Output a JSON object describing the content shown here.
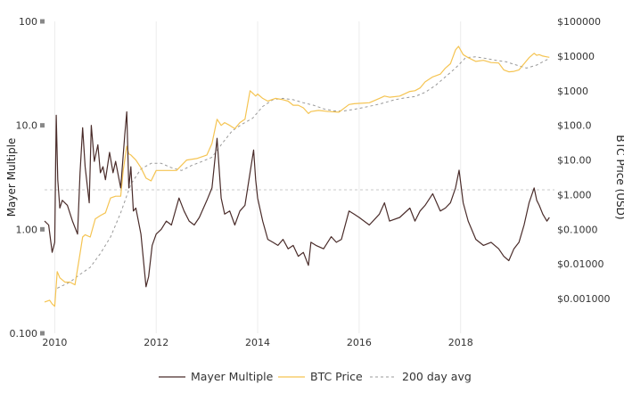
{
  "chart_data": {
    "type": "line",
    "title": "",
    "xlabel": "",
    "ylabel_left": "Mayer Multiple",
    "ylabel_right": "BTC Price (USD)",
    "x_range": [
      2009.8,
      2019.85
    ],
    "x_ticks": [
      2010,
      2012,
      2014,
      2016,
      2018
    ],
    "x_tick_labels": [
      "2010",
      "2012",
      "2014",
      "2016",
      "2018"
    ],
    "left_axis": {
      "scale": "log",
      "range": [
        0.1,
        100
      ],
      "ticks": [
        0.1,
        1,
        10,
        100
      ],
      "tick_labels": [
        "0.100",
        "1.00",
        "10.0",
        "100"
      ]
    },
    "right_axis": {
      "scale": "log",
      "range": [
        0.0001,
        100000
      ],
      "ticks": [
        0.001,
        0.01,
        0.1,
        1,
        10,
        100,
        1000,
        10000,
        100000
      ],
      "tick_labels": [
        "$0.001000",
        "$0.01000",
        "$0.1000",
        "$1.000",
        "$10.00",
        "$100.0",
        "$1000",
        "$10000",
        "$100000"
      ]
    },
    "reference_line": {
      "axis": "left",
      "value": 2.4
    },
    "grid": {
      "x": true,
      "y": false
    },
    "legend": {
      "position": "bottom-center"
    },
    "colors": {
      "mayer_multiple": "#4a2c2a",
      "btc_price": "#f5c452",
      "ma200": "#999999",
      "reference": "#c8c8c8"
    },
    "series": [
      {
        "name": "Mayer Multiple",
        "axis": "left",
        "x": [
          2009.8,
          2009.88,
          2009.95,
          2010.0,
          2010.03,
          2010.06,
          2010.1,
          2010.15,
          2010.25,
          2010.35,
          2010.45,
          2010.5,
          2010.55,
          2010.6,
          2010.68,
          2010.72,
          2010.78,
          2010.85,
          2010.9,
          2010.95,
          2011.0,
          2011.08,
          2011.15,
          2011.2,
          2011.3,
          2011.38,
          2011.42,
          2011.46,
          2011.5,
          2011.55,
          2011.6,
          2011.7,
          2011.8,
          2011.85,
          2011.92,
          2012.0,
          2012.1,
          2012.2,
          2012.3,
          2012.45,
          2012.55,
          2012.65,
          2012.75,
          2012.85,
          2013.0,
          2013.1,
          2013.2,
          2013.28,
          2013.35,
          2013.45,
          2013.55,
          2013.65,
          2013.75,
          2013.85,
          2013.92,
          2013.96,
          2014.0,
          2014.1,
          2014.2,
          2014.3,
          2014.4,
          2014.5,
          2014.6,
          2014.7,
          2014.8,
          2014.9,
          2015.0,
          2015.05,
          2015.15,
          2015.3,
          2015.45,
          2015.55,
          2015.65,
          2015.8,
          2015.9,
          2016.0,
          2016.2,
          2016.4,
          2016.5,
          2016.6,
          2016.8,
          2017.0,
          2017.1,
          2017.2,
          2017.3,
          2017.45,
          2017.6,
          2017.7,
          2017.8,
          2017.9,
          2017.97,
          2018.05,
          2018.15,
          2018.3,
          2018.45,
          2018.6,
          2018.75,
          2018.85,
          2018.95,
          2019.05,
          2019.15,
          2019.25,
          2019.35,
          2019.45,
          2019.5,
          2019.55,
          2019.62,
          2019.7,
          2019.75
        ],
        "values": [
          1.2,
          1.1,
          0.6,
          0.75,
          12.5,
          3.0,
          1.6,
          1.9,
          1.7,
          1.2,
          0.9,
          3.5,
          9.5,
          4.0,
          1.8,
          10.0,
          4.5,
          6.5,
          3.5,
          4.0,
          3.0,
          5.5,
          3.5,
          4.5,
          2.5,
          8.0,
          13.5,
          2.5,
          4.0,
          1.5,
          1.6,
          0.9,
          0.28,
          0.35,
          0.7,
          0.9,
          1.0,
          1.2,
          1.1,
          2.0,
          1.5,
          1.2,
          1.1,
          1.3,
          1.9,
          2.5,
          7.5,
          2.0,
          1.4,
          1.5,
          1.1,
          1.5,
          1.7,
          3.5,
          5.8,
          3.0,
          2.0,
          1.2,
          0.8,
          0.75,
          0.7,
          0.8,
          0.65,
          0.7,
          0.55,
          0.6,
          0.45,
          0.75,
          0.7,
          0.65,
          0.85,
          0.75,
          0.8,
          1.5,
          1.4,
          1.3,
          1.1,
          1.4,
          1.8,
          1.2,
          1.3,
          1.6,
          1.2,
          1.5,
          1.7,
          2.2,
          1.5,
          1.6,
          1.8,
          2.5,
          3.7,
          1.8,
          1.2,
          0.8,
          0.7,
          0.75,
          0.65,
          0.55,
          0.5,
          0.65,
          0.75,
          1.1,
          1.8,
          2.5,
          1.9,
          1.7,
          1.4,
          1.2,
          1.3
        ]
      },
      {
        "name": "BTC Price",
        "axis": "right",
        "x": [
          2009.8,
          2009.9,
          2009.95,
          2010.0,
          2010.05,
          2010.1,
          2010.2,
          2010.3,
          2010.4,
          2010.5,
          2010.55,
          2010.6,
          2010.7,
          2010.8,
          2010.9,
          2011.0,
          2011.1,
          2011.2,
          2011.3,
          2011.35,
          2011.42,
          2011.46,
          2011.5,
          2011.6,
          2011.7,
          2011.8,
          2011.9,
          2012.0,
          2012.2,
          2012.4,
          2012.6,
          2012.8,
          2013.0,
          2013.1,
          2013.2,
          2013.28,
          2013.35,
          2013.45,
          2013.55,
          2013.65,
          2013.75,
          2013.85,
          2013.92,
          2013.96,
          2014.0,
          2014.1,
          2014.2,
          2014.35,
          2014.5,
          2014.6,
          2014.7,
          2014.8,
          2014.9,
          2015.0,
          2015.05,
          2015.2,
          2015.4,
          2015.6,
          2015.8,
          2015.9,
          2016.0,
          2016.2,
          2016.4,
          2016.5,
          2016.6,
          2016.8,
          2017.0,
          2017.1,
          2017.2,
          2017.3,
          2017.45,
          2017.6,
          2017.7,
          2017.8,
          2017.9,
          2017.96,
          2018.05,
          2018.15,
          2018.3,
          2018.45,
          2018.6,
          2018.75,
          2018.85,
          2018.95,
          2019.05,
          2019.15,
          2019.25,
          2019.35,
          2019.45,
          2019.5,
          2019.55,
          2019.62,
          2019.7,
          2019.75
        ],
        "values": [
          0.0008,
          0.0009,
          0.0007,
          0.0006,
          0.006,
          0.004,
          0.003,
          0.003,
          0.0025,
          0.02,
          0.06,
          0.07,
          0.06,
          0.2,
          0.25,
          0.3,
          0.8,
          0.9,
          0.9,
          5,
          25,
          15,
          14,
          10,
          6,
          3,
          2.5,
          5,
          5,
          5,
          10,
          11,
          14,
          30,
          150,
          100,
          120,
          100,
          80,
          120,
          150,
          1000,
          800,
          700,
          800,
          600,
          500,
          600,
          550,
          500,
          380,
          380,
          320,
          220,
          250,
          270,
          250,
          240,
          400,
          420,
          430,
          450,
          600,
          700,
          650,
          700,
          950,
          1000,
          1200,
          1800,
          2500,
          3000,
          4500,
          6000,
          15000,
          19000,
          11000,
          9000,
          7000,
          7500,
          6500,
          6300,
          4000,
          3500,
          3600,
          4000,
          6000,
          9000,
          12000,
          10500,
          11000,
          10000,
          9500,
          9200
        ]
      },
      {
        "name": "200 day avg",
        "axis": "right",
        "x": [
          2010.05,
          2010.3,
          2010.5,
          2010.7,
          2010.9,
          2011.1,
          2011.3,
          2011.5,
          2011.7,
          2011.9,
          2012.1,
          2012.3,
          2012.5,
          2012.7,
          2012.9,
          2013.1,
          2013.3,
          2013.5,
          2013.7,
          2013.9,
          2014.1,
          2014.3,
          2014.5,
          2014.7,
          2014.9,
          2015.1,
          2015.3,
          2015.5,
          2015.7,
          2015.9,
          2016.1,
          2016.3,
          2016.5,
          2016.7,
          2016.9,
          2017.1,
          2017.3,
          2017.5,
          2017.7,
          2017.9,
          2018.1,
          2018.3,
          2018.5,
          2018.7,
          2018.9,
          2019.1,
          2019.3,
          2019.5,
          2019.75
        ],
        "values": [
          0.002,
          0.003,
          0.005,
          0.008,
          0.02,
          0.06,
          0.3,
          2.0,
          5.5,
          8,
          8,
          6,
          5,
          7,
          9,
          12,
          30,
          70,
          110,
          160,
          350,
          550,
          600,
          550,
          450,
          380,
          300,
          260,
          260,
          290,
          330,
          380,
          450,
          550,
          620,
          680,
          900,
          1400,
          2500,
          4500,
          9000,
          9500,
          8500,
          7500,
          6800,
          5500,
          4500,
          5500,
          8500
        ]
      }
    ]
  }
}
